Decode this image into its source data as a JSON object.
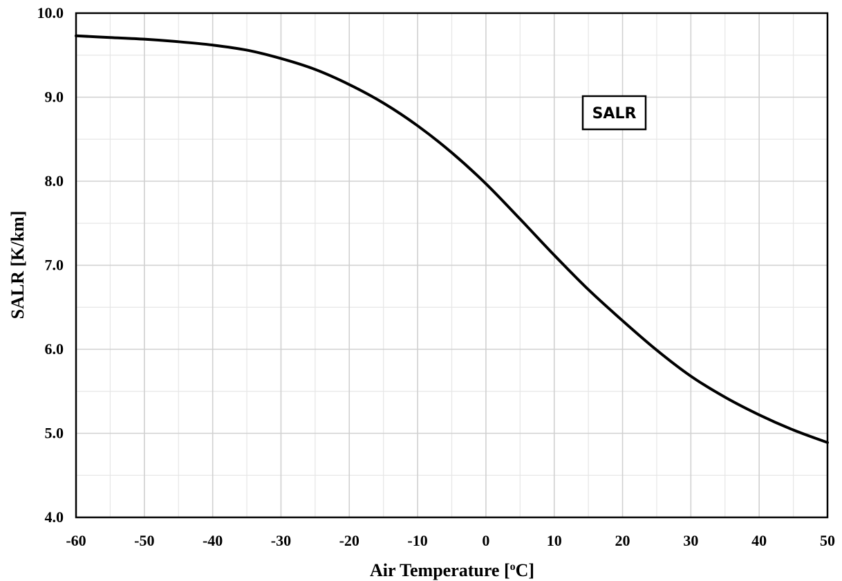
{
  "chart_data": {
    "type": "line",
    "title": "",
    "xlabel": "Air Temperature [",
    "xlabel_sup": "o",
    "xlabel_tail": "C]",
    "ylabel": "SALR [K/km]",
    "xlim": [
      -60,
      50
    ],
    "ylim": [
      4.0,
      10.0
    ],
    "x_ticks": [
      "-60",
      "-50",
      "-40",
      "-30",
      "-20",
      "-10",
      "0",
      "10",
      "20",
      "30",
      "40",
      "50"
    ],
    "y_ticks": [
      "4.0",
      "5.0",
      "6.0",
      "7.0",
      "8.0",
      "9.0",
      "10.0"
    ],
    "grid": true,
    "annotation": "SALR",
    "series": [
      {
        "x": [
          -60,
          -55,
          -50,
          -45,
          -40,
          -35,
          -30,
          -25,
          -20,
          -15,
          -10,
          -5,
          0,
          5,
          10,
          15,
          20,
          25,
          30,
          35,
          40,
          45,
          50
        ],
        "y": [
          9.73,
          9.71,
          9.69,
          9.66,
          9.62,
          9.56,
          9.46,
          9.33,
          9.15,
          8.93,
          8.66,
          8.34,
          7.97,
          7.55,
          7.12,
          6.71,
          6.34,
          5.99,
          5.68,
          5.43,
          5.22,
          5.04,
          4.89
        ],
        "color": "#000000"
      }
    ]
  }
}
